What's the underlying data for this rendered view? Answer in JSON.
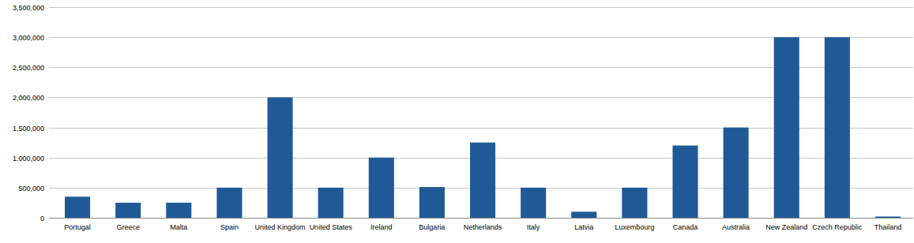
{
  "chart_data": {
    "type": "bar",
    "categories": [
      "Portugal",
      "Greece",
      "Malta",
      "Spain",
      "United Kingdom",
      "United States",
      "Ireland",
      "Bulgaria",
      "Netherlands",
      "Italy",
      "Latvia",
      "Luxembourg",
      "Canada",
      "Australia",
      "New Zealand",
      "Czech Republic",
      "Thailand"
    ],
    "values": [
      350000,
      250000,
      250000,
      500000,
      2000000,
      500000,
      1000000,
      510000,
      1250000,
      500000,
      100000,
      500000,
      1200000,
      1500000,
      3000000,
      3000000,
      20000
    ],
    "color": "#1f5a96",
    "ylim": [
      0,
      3500000
    ],
    "yticks": [
      {
        "value": 0,
        "label": "0"
      },
      {
        "value": 500000,
        "label": "500,000"
      },
      {
        "value": 1000000,
        "label": "1,000,000"
      },
      {
        "value": 1500000,
        "label": "1,500,000"
      },
      {
        "value": 2000000,
        "label": "2,000,000"
      },
      {
        "value": 2500000,
        "label": "2,500,000"
      },
      {
        "value": 3000000,
        "label": "3,000,000"
      },
      {
        "value": 3500000,
        "label": "3,500,000"
      }
    ],
    "grid": true
  }
}
